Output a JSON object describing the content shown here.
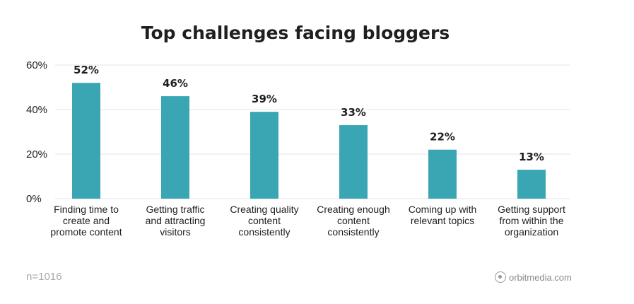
{
  "chart_data": {
    "type": "bar",
    "title": "Top challenges facing bloggers",
    "categories": [
      [
        "Finding time to",
        "create and",
        "promote content"
      ],
      [
        "Getting traffic",
        "and attracting",
        "visitors"
      ],
      [
        "Creating quality",
        "content",
        "consistently"
      ],
      [
        "Creating enough",
        "content",
        "consistently"
      ],
      [
        "Coming up with",
        "relevant topics"
      ],
      [
        "Getting support",
        "from within the",
        "organization"
      ]
    ],
    "values": [
      52,
      46,
      39,
      33,
      22,
      13
    ],
    "data_labels": [
      "52%",
      "46%",
      "39%",
      "33%",
      "22%",
      "13%"
    ],
    "ylim": [
      0,
      60
    ],
    "yticks": [
      0,
      20,
      40,
      60
    ],
    "ytick_labels": [
      "0%",
      "20%",
      "40%",
      "60%"
    ],
    "xlabel": "",
    "ylabel": "",
    "grid": true,
    "bar_color": "#3aa6b3",
    "grid_color": "#e6e6e6"
  },
  "footer": {
    "sample_size": "n=1016",
    "brand": "orbitmedia.com"
  }
}
